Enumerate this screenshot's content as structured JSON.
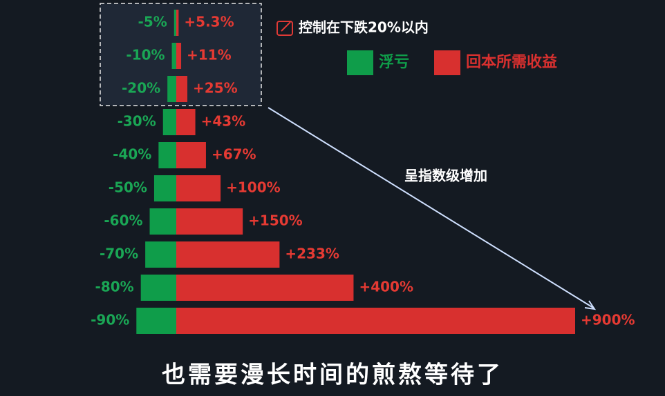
{
  "chart_data": {
    "type": "diverging-bar",
    "series": [
      {
        "name": "浮亏",
        "color": "#0f9d4a",
        "values": [
          -5,
          -10,
          -20,
          -30,
          -40,
          -50,
          -60,
          -70,
          -80,
          -90
        ],
        "value_labels": [
          "-5%",
          "-10%",
          "-20%",
          "-30%",
          "-40%",
          "-50%",
          "-60%",
          "-70%",
          "-80%",
          "-90%"
        ]
      },
      {
        "name": "回本所需收益",
        "color": "#d8302f",
        "values": [
          5.3,
          11,
          25,
          43,
          67,
          100,
          150,
          233,
          400,
          900
        ],
        "value_labels": [
          "+5.3%",
          "+11%",
          "+25%",
          "+43%",
          "+67%",
          "+100%",
          "+150%",
          "+233%",
          "+400%",
          "+900%"
        ]
      }
    ],
    "box_annotation": "控制在下跌20%以内",
    "arrow_annotation": "呈指数级增加",
    "subtitle": "也需要漫长时间的煎熬等待了"
  }
}
